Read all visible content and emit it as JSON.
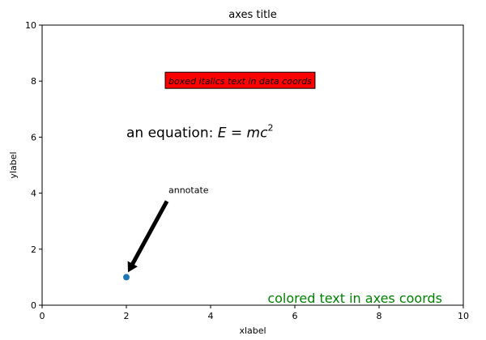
{
  "chart_data": {
    "type": "scatter",
    "title": "axes title",
    "xlabel": "xlabel",
    "ylabel": "ylabel",
    "xlim": [
      0,
      10
    ],
    "ylim": [
      0,
      10
    ],
    "xticks": [
      0,
      2,
      4,
      6,
      8,
      10
    ],
    "yticks": [
      0,
      2,
      4,
      6,
      8,
      10
    ],
    "grid": false,
    "points": [
      {
        "x": 2,
        "y": 1,
        "color": "#1f77b4"
      }
    ],
    "annotations": {
      "boxed": {
        "text": "boxed italics text in data coords",
        "x": 3,
        "y": 8,
        "box_color": "#ff0000"
      },
      "equation": {
        "prefix": "an equation: ",
        "math": "E = mc",
        "sup": "2",
        "x": 2,
        "y": 6
      },
      "arrow": {
        "text": "annotate",
        "xytext": [
          3,
          4
        ],
        "xy": [
          2,
          1
        ],
        "color": "#000000"
      },
      "colored": {
        "text": "colored text in axes coords",
        "color": "#008000"
      }
    }
  }
}
